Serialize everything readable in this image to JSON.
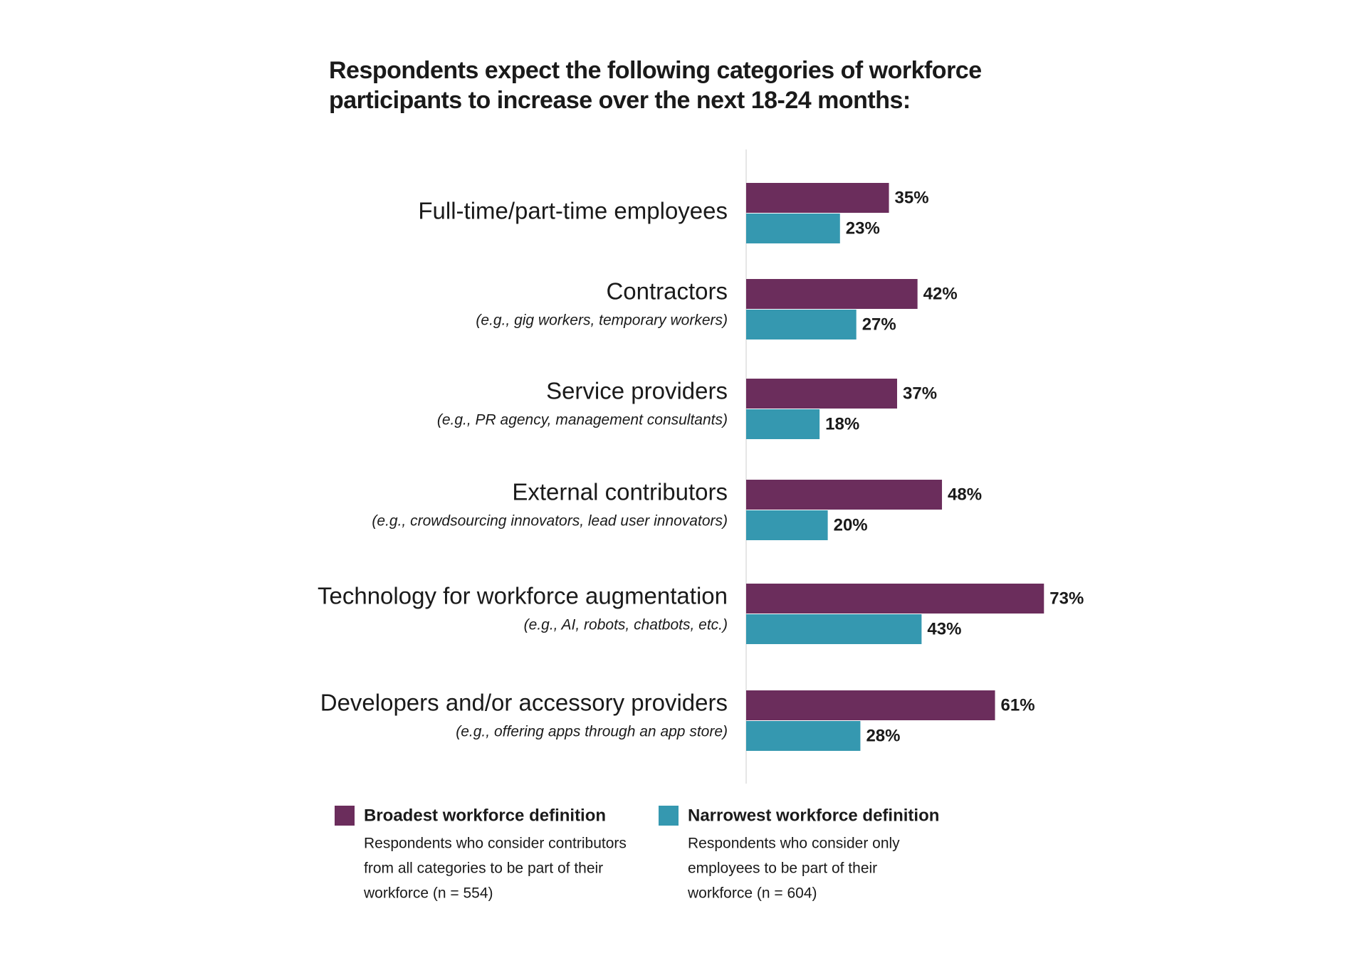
{
  "chart_data": {
    "type": "bar",
    "orientation": "horizontal",
    "title": "Respondents expect the following categories of workforce participants to increase over the next 18-24 months:",
    "categories": [
      "Full-time/part-time employees",
      "Contractors",
      "Service providers",
      "External contributors",
      "Technology for workforce augmentation",
      "Developers and/or accessory providers"
    ],
    "category_notes": [
      null,
      "(e.g., gig workers, temporary workers)",
      "(e.g., PR agency, management consultants)",
      "(e.g., crowdsourcing innovators, lead user innovators)",
      "(e.g., AI, robots, chatbots, etc.)",
      "(e.g., offering apps through an app store)"
    ],
    "series": [
      {
        "name": "Broadest workforce definition",
        "color": "#6b2d5c",
        "description": [
          "Respondents who consider contributors",
          "from all categories to be part of their",
          "workforce (n = 554)"
        ],
        "values": [
          35,
          42,
          37,
          48,
          73,
          61
        ],
        "value_labels": [
          "35%",
          "42%",
          "37%",
          "48%",
          "73%",
          "61%"
        ]
      },
      {
        "name": "Narrowest workforce definition",
        "color": "#3598b0",
        "description": [
          "Respondents who consider only",
          "employees to be part of their",
          "workforce (n = 604)"
        ],
        "values": [
          23,
          27,
          18,
          20,
          43,
          28
        ],
        "value_labels": [
          "23%",
          "27%",
          "18%",
          "20%",
          "43%",
          "28%"
        ]
      }
    ]
  }
}
